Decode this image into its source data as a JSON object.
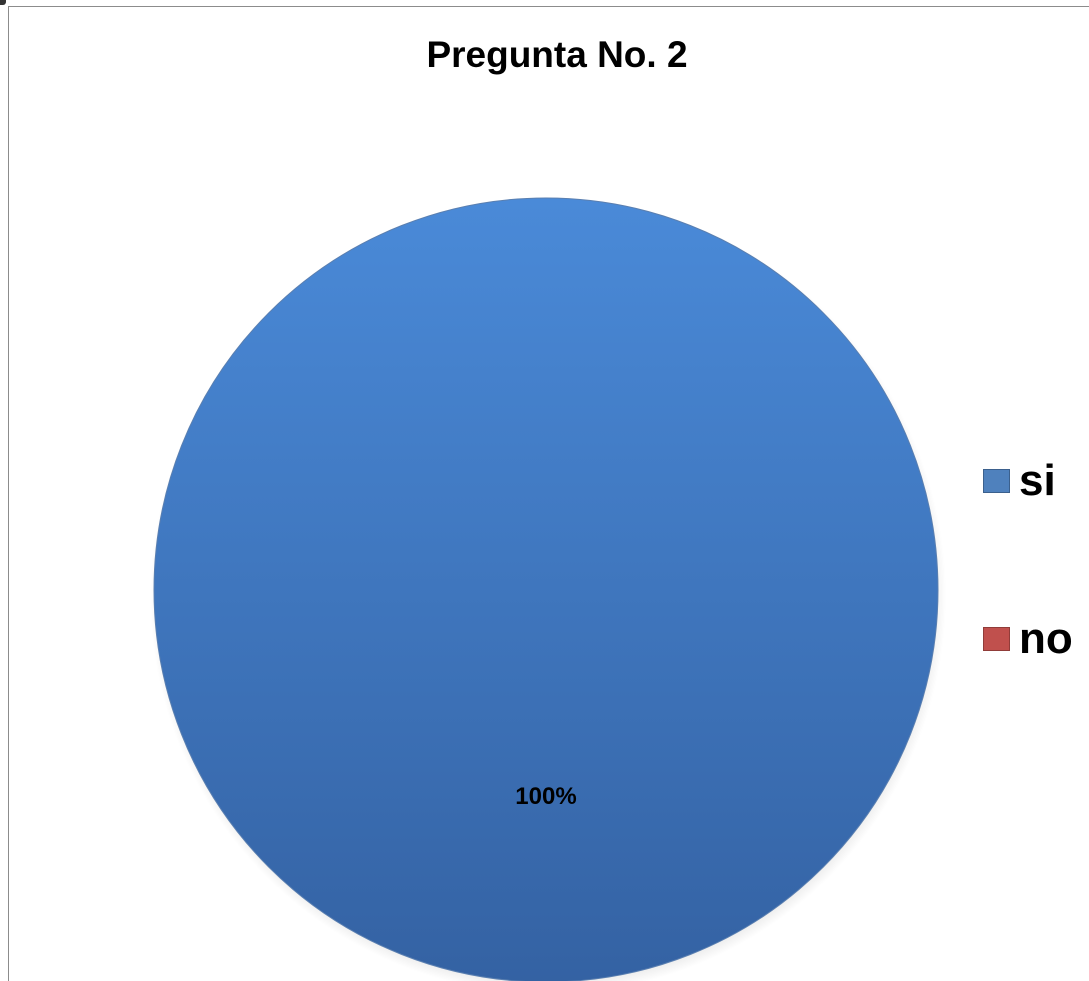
{
  "chart_data": {
    "type": "pie",
    "title": "Pregunta No. 2",
    "categories": [
      "si",
      "no"
    ],
    "values": [
      100,
      0
    ],
    "value_unit": "%",
    "data_labels": [
      "100%",
      ""
    ],
    "colors": [
      "#3f7dc9",
      "#c0504d"
    ],
    "legend": {
      "placement": "right",
      "entries": [
        {
          "label": "si",
          "color": "#4f81bd"
        },
        {
          "label": "no",
          "color": "#c0504d"
        }
      ]
    }
  }
}
